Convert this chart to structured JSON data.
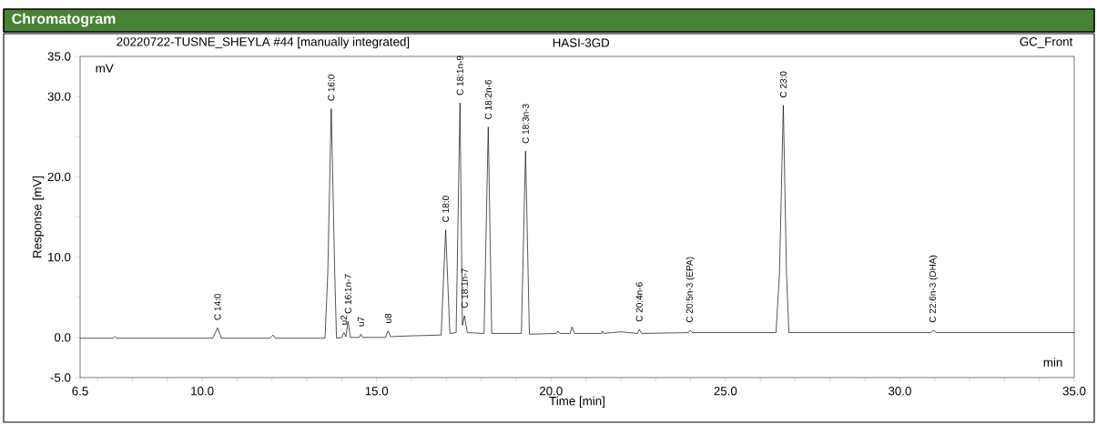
{
  "chart_data": {
    "type": "line",
    "title": "Chromatogram",
    "subtitle": "20220722-TUSNE_SHEYLA #44 [manually integrated]",
    "xlabel": "Time [min]",
    "ylabel": "Response [mV]",
    "annotations": [
      "HASI-3GD",
      "GC_Front",
      "mV",
      "min",
      {
        "text": "C 14:0",
        "x": 10.44,
        "y": 1.2
      },
      {
        "text": "C 16:0",
        "x": 13.7,
        "y": 28.5
      },
      {
        "text": "u2",
        "x": 14.06,
        "y": 0.6
      },
      {
        "text": "C 16:1n-7",
        "x": 14.18,
        "y": 2.0
      },
      {
        "text": "u7",
        "x": 14.55,
        "y": 0.4
      },
      {
        "text": "u8",
        "x": 15.33,
        "y": 0.8
      },
      {
        "text": "C 18:0",
        "x": 16.98,
        "y": 13.4
      },
      {
        "text": "C 18:1n-9",
        "x": 17.39,
        "y": 29.2
      },
      {
        "text": "C 18:1n-7",
        "x": 17.52,
        "y": 2.7
      },
      {
        "text": "C 18:2n-6",
        "x": 18.2,
        "y": 26.2
      },
      {
        "text": "C 18:3n-3",
        "x": 19.27,
        "y": 23.2
      },
      {
        "text": "C 20:4n-6",
        "x": 22.53,
        "y": 1.0
      },
      {
        "text": "C 20:5n-3 (EPA)",
        "x": 23.99,
        "y": 0.9
      },
      {
        "text": "C 23:0",
        "x": 26.66,
        "y": 28.9
      },
      {
        "text": "C 22:6n-3 (DHA)",
        "x": 30.96,
        "y": 0.9
      }
    ],
    "series": [
      {
        "color": "#000000",
        "x": [
          6.5,
          7.45,
          7.5,
          7.55,
          10.3,
          10.44,
          10.55,
          11.95,
          12.03,
          12.1,
          13.52,
          13.6,
          13.7,
          13.8,
          13.85,
          14.0,
          14.06,
          14.12,
          14.18,
          14.25,
          14.5,
          14.55,
          14.6,
          15.25,
          15.33,
          15.4,
          16.0,
          16.85,
          16.98,
          17.1,
          17.28,
          17.39,
          17.46,
          17.52,
          17.6,
          18.08,
          18.2,
          18.3,
          19.15,
          19.27,
          19.38,
          20.15,
          20.2,
          20.25,
          20.55,
          20.6,
          20.68,
          21.45,
          21.48,
          21.52,
          22.0,
          22.48,
          22.53,
          22.6,
          23.94,
          23.99,
          24.05,
          26.45,
          26.55,
          26.66,
          26.75,
          26.82,
          30.9,
          30.96,
          31.05,
          35.0
        ],
        "values": [
          -0.1,
          -0.1,
          0.1,
          -0.1,
          -0.1,
          1.2,
          -0.1,
          -0.1,
          0.3,
          -0.1,
          -0.1,
          8,
          28.5,
          8,
          -0.1,
          0.0,
          0.6,
          0.1,
          2.0,
          0.0,
          0.0,
          0.4,
          0.0,
          0.0,
          0.8,
          0.1,
          0.2,
          0.3,
          13.4,
          0.5,
          0.6,
          29.2,
          1.5,
          2.7,
          0.6,
          0.5,
          26.2,
          0.5,
          0.5,
          23.2,
          0.4,
          0.5,
          0.8,
          0.5,
          0.5,
          1.3,
          0.5,
          0.5,
          0.8,
          0.5,
          0.7,
          0.5,
          1.0,
          0.5,
          0.6,
          0.9,
          0.6,
          0.6,
          8,
          28.9,
          8,
          0.6,
          0.6,
          0.9,
          0.6,
          0.6
        ]
      }
    ],
    "xlim": [
      6.5,
      35.0
    ],
    "ylim": [
      -5.0,
      35.0
    ],
    "xticks": [
      {
        "value": 6.5,
        "label": "6.5"
      },
      {
        "value": 7,
        "label": null
      },
      {
        "value": 8,
        "label": null
      },
      {
        "value": 9,
        "label": null
      },
      {
        "value": 10,
        "label": "10.0"
      },
      {
        "value": 11,
        "label": null
      },
      {
        "value": 12,
        "label": null
      },
      {
        "value": 13,
        "label": null
      },
      {
        "value": 14,
        "label": null
      },
      {
        "value": 15,
        "label": "15.0"
      },
      {
        "value": 16,
        "label": null
      },
      {
        "value": 17,
        "label": null
      },
      {
        "value": 18,
        "label": null
      },
      {
        "value": 19,
        "label": null
      },
      {
        "value": 20,
        "label": "20.0"
      },
      {
        "value": 21,
        "label": null
      },
      {
        "value": 22,
        "label": null
      },
      {
        "value": 23,
        "label": null
      },
      {
        "value": 24,
        "label": null
      },
      {
        "value": 25,
        "label": "25.0"
      },
      {
        "value": 26,
        "label": null
      },
      {
        "value": 27,
        "label": null
      },
      {
        "value": 28,
        "label": null
      },
      {
        "value": 29,
        "label": null
      },
      {
        "value": 30,
        "label": "30.0"
      },
      {
        "value": 31,
        "label": null
      },
      {
        "value": 32,
        "label": null
      },
      {
        "value": 33,
        "label": null
      },
      {
        "value": 34,
        "label": null
      },
      {
        "value": 35,
        "label": "35.0"
      }
    ],
    "yticks": [
      {
        "value": -5,
        "label": "-5.0"
      },
      {
        "value": 0,
        "label": "0.0"
      },
      {
        "value": 5,
        "label": null
      },
      {
        "value": 10,
        "label": "10.0"
      },
      {
        "value": 15,
        "label": null
      },
      {
        "value": 20,
        "label": "20.0"
      },
      {
        "value": 25,
        "label": null
      },
      {
        "value": 30,
        "label": "30.0"
      },
      {
        "value": 35,
        "label": "35.0"
      }
    ],
    "grid": false,
    "marker": "none",
    "line_style": "solid"
  }
}
